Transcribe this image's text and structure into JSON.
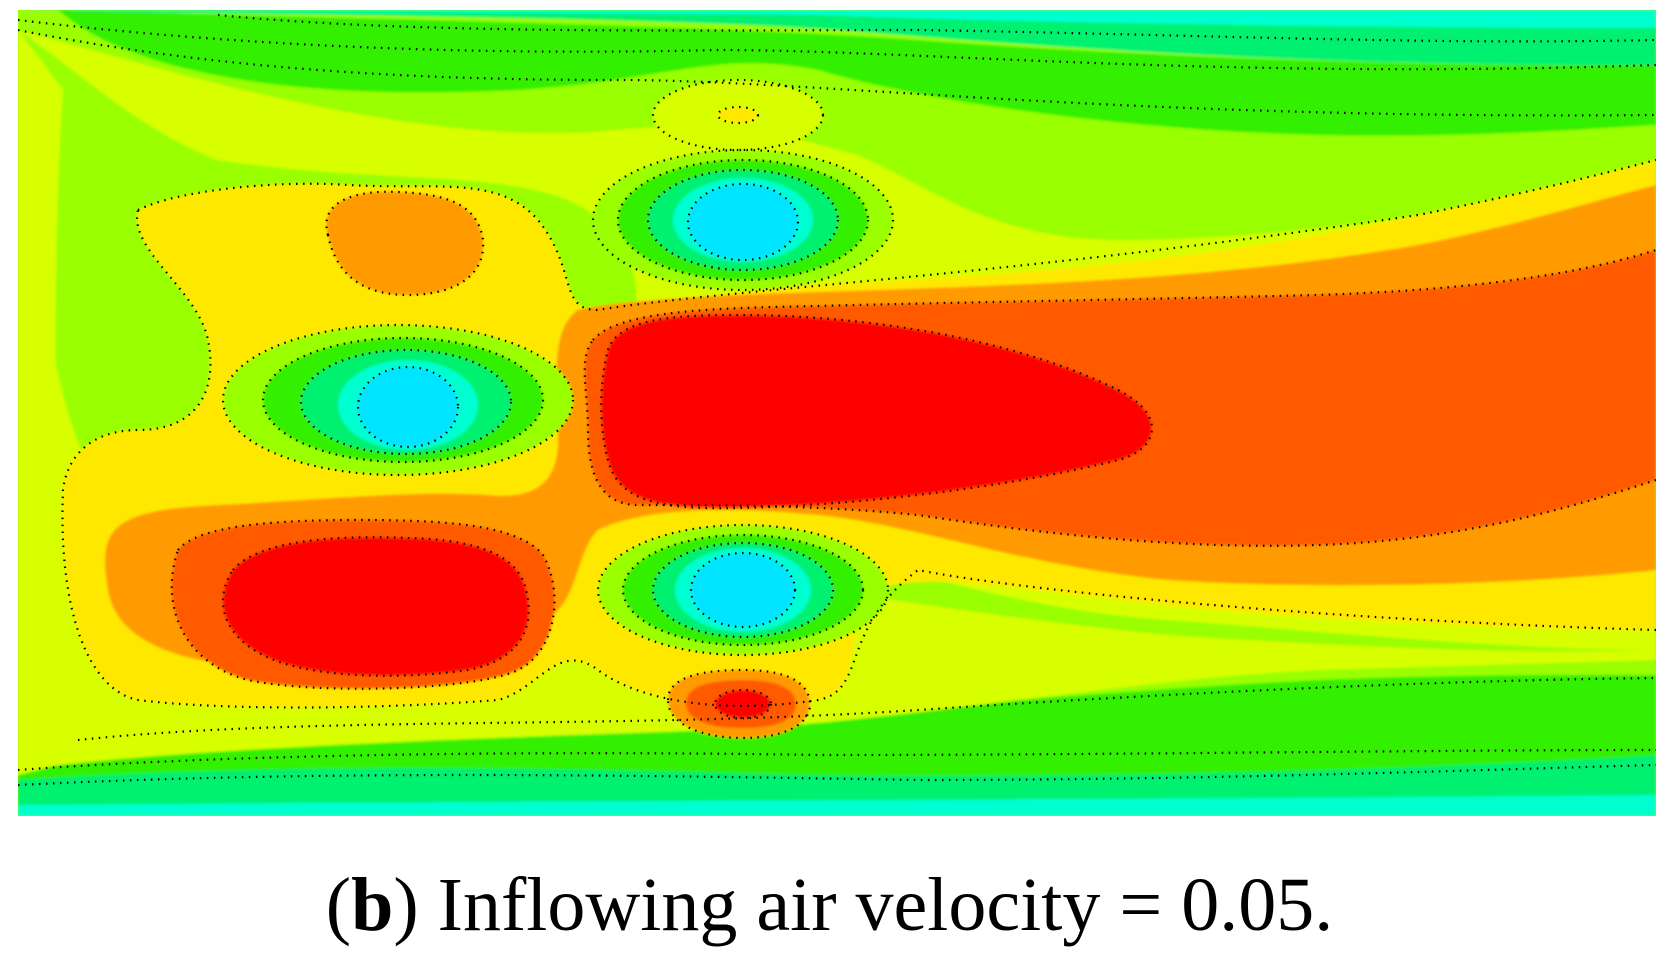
{
  "figure": {
    "caption": {
      "open_paren": "(",
      "label": "b",
      "close_paren": ")",
      "text": " Inflowing air velocity = 0.05."
    }
  },
  "contour_colors": {
    "cyan": "#00e5ff",
    "aqua": "#00ffd0",
    "spring_green": "#00f070",
    "green": "#30f000",
    "lime": "#9aff00",
    "yellow_green": "#d8ff00",
    "yellow": "#ffe800",
    "orange": "#ff9a00",
    "orange_red": "#ff5a00",
    "red": "#ff0000"
  }
}
